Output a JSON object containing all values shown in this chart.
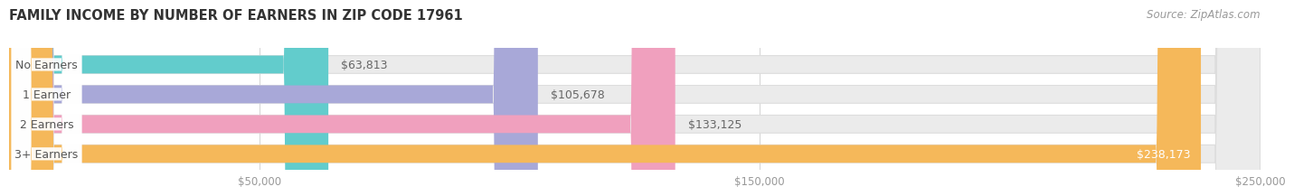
{
  "title": "FAMILY INCOME BY NUMBER OF EARNERS IN ZIP CODE 17961",
  "source": "Source: ZipAtlas.com",
  "categories": [
    "No Earners",
    "1 Earner",
    "2 Earners",
    "3+ Earners"
  ],
  "values": [
    63813,
    105678,
    133125,
    238173
  ],
  "value_labels": [
    "$63,813",
    "$105,678",
    "$133,125",
    "$238,173"
  ],
  "bar_colors": [
    "#62CCCC",
    "#A8A8D8",
    "#F0A0BE",
    "#F5B85A"
  ],
  "bar_bg_color": "#EBEBEB",
  "background_color": "#FFFFFF",
  "xlim_data": [
    0,
    250000
  ],
  "xticks": [
    50000,
    150000,
    250000
  ],
  "xtick_labels": [
    "$50,000",
    "$150,000",
    "$250,000"
  ],
  "title_fontsize": 10.5,
  "source_fontsize": 8.5,
  "label_fontsize": 9,
  "value_fontsize": 9
}
